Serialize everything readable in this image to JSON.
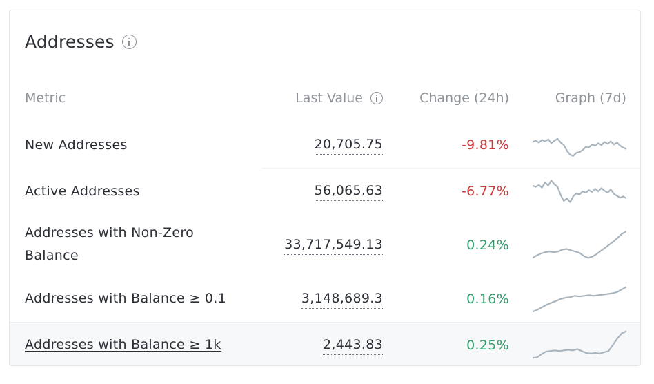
{
  "card": {
    "title": "Addresses",
    "title_icon": "info-icon"
  },
  "table": {
    "columns": {
      "metric": "Metric",
      "last_value": "Last Value",
      "last_value_icon": "info-icon",
      "change": "Change (24h)",
      "graph": "Graph (7d)"
    },
    "rows": [
      {
        "metric": "New Addresses",
        "value": "20,705.75",
        "change": "-9.81%",
        "trend": "negative",
        "spark": [
          0.62,
          0.66,
          0.6,
          0.68,
          0.64,
          0.7,
          0.58,
          0.66,
          0.72,
          0.6,
          0.52,
          0.34,
          0.22,
          0.18,
          0.28,
          0.3,
          0.36,
          0.46,
          0.44,
          0.54,
          0.5,
          0.58,
          0.52,
          0.62,
          0.56,
          0.64,
          0.54,
          0.6,
          0.5,
          0.44,
          0.4
        ]
      },
      {
        "metric": "Active Addresses",
        "value": "56,065.63",
        "change": "-6.77%",
        "trend": "negative",
        "spark": [
          0.7,
          0.66,
          0.72,
          0.64,
          0.8,
          0.7,
          0.86,
          0.74,
          0.66,
          0.4,
          0.22,
          0.3,
          0.18,
          0.36,
          0.46,
          0.42,
          0.52,
          0.48,
          0.56,
          0.5,
          0.6,
          0.52,
          0.62,
          0.54,
          0.48,
          0.58,
          0.44,
          0.38,
          0.32,
          0.36,
          0.3
        ]
      },
      {
        "metric": "Addresses with Non-Zero Balance",
        "value": "33,717,549.13",
        "change": "0.24%",
        "trend": "positive",
        "spark": [
          0.1,
          0.18,
          0.24,
          0.28,
          0.3,
          0.28,
          0.3,
          0.36,
          0.38,
          0.34,
          0.3,
          0.26,
          0.16,
          0.1,
          0.14,
          0.22,
          0.32,
          0.42,
          0.52,
          0.62,
          0.74,
          0.86,
          0.94
        ]
      },
      {
        "metric": "Addresses with Balance ≥ 0.1",
        "value": "3,148,689.3",
        "change": "0.16%",
        "trend": "positive",
        "spark": [
          0.08,
          0.14,
          0.22,
          0.3,
          0.36,
          0.42,
          0.48,
          0.52,
          0.54,
          0.58,
          0.56,
          0.58,
          0.6,
          0.58,
          0.6,
          0.62,
          0.64,
          0.66,
          0.7,
          0.78,
          0.86
        ]
      },
      {
        "metric": "Addresses with Balance ≥ 1k",
        "value": "2,443.83",
        "change": "0.25%",
        "trend": "positive",
        "spark": [
          0.08,
          0.1,
          0.2,
          0.28,
          0.3,
          0.32,
          0.3,
          0.32,
          0.34,
          0.32,
          0.36,
          0.3,
          0.24,
          0.22,
          0.24,
          0.22,
          0.26,
          0.3,
          0.5,
          0.7,
          0.86,
          0.92
        ]
      }
    ]
  },
  "colors": {
    "negative": "#cf3b3b",
    "positive": "#2e9e6a",
    "sparkline": "#a9b4bd",
    "text": "#2b2f36",
    "muted": "#8f949b"
  }
}
